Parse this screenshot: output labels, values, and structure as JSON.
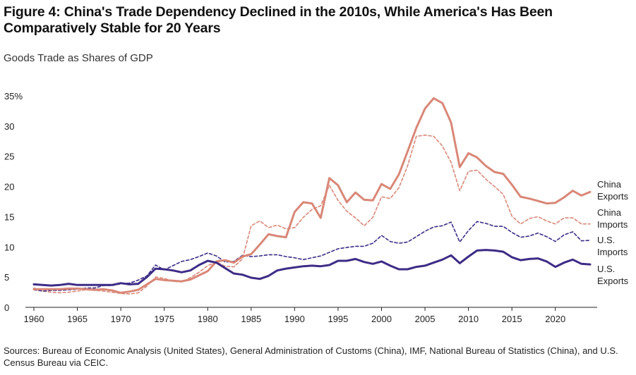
{
  "figure": {
    "title_prefix": "Figure 4:",
    "title_rest": " China's Trade Dependency Declined in the 2010s, While America's Has Been Comparatively Stable for 20 Years",
    "subtitle": "Goods Trade as Shares of GDP",
    "sources": "Sources: Bureau of Economic Analysis (United States), General Administration of Customs (China), IMF, National Bureau of Statistics (China), and U.S. Census Bureau via CEIC."
  },
  "chart_data": {
    "type": "line",
    "title": "China's Trade Dependency Declined in the 2010s, While America's Has Been Comparatively Stable for 20 Years",
    "subtitle": "Goods Trade as Shares of GDP",
    "xlim": [
      1960,
      2024
    ],
    "ylim": [
      0,
      35
    ],
    "x_ticks": [
      1960,
      1965,
      1970,
      1975,
      1980,
      1985,
      1990,
      1995,
      2000,
      2005,
      2010,
      2015,
      2020
    ],
    "x_tick_labels": [
      "1960",
      "1965",
      "1970",
      "1975",
      "1980",
      "1985",
      "1990",
      "1995",
      "2000",
      "2005",
      "2010",
      "2015",
      "2020"
    ],
    "y_ticks": [
      0,
      5,
      10,
      15,
      20,
      25,
      30,
      35
    ],
    "y_tick_labels": [
      "0",
      "5",
      "10",
      "15",
      "20",
      "25",
      "30",
      "35%"
    ],
    "grid": false,
    "legend": "direct labels at right end of lines",
    "x": [
      1960,
      1961,
      1962,
      1963,
      1964,
      1965,
      1966,
      1967,
      1968,
      1969,
      1970,
      1971,
      1972,
      1973,
      1974,
      1975,
      1976,
      1977,
      1978,
      1979,
      1980,
      1981,
      1982,
      1983,
      1984,
      1985,
      1986,
      1987,
      1988,
      1989,
      1990,
      1991,
      1992,
      1993,
      1994,
      1995,
      1996,
      1997,
      1998,
      1999,
      2000,
      2001,
      2002,
      2003,
      2004,
      2005,
      2006,
      2007,
      2008,
      2009,
      2010,
      2011,
      2012,
      2013,
      2014,
      2015,
      2016,
      2017,
      2018,
      2019,
      2020,
      2021,
      2022,
      2023,
      2024
    ],
    "series": [
      {
        "name": "China Exports",
        "label_lines": [
          "China",
          "Exports"
        ],
        "color": "#d98777",
        "style": "solid",
        "values": [
          3.0,
          3.0,
          3.0,
          3.0,
          3.1,
          3.1,
          3.0,
          2.9,
          3.0,
          2.8,
          2.4,
          2.6,
          2.9,
          3.8,
          4.7,
          4.5,
          4.4,
          4.3,
          4.6,
          5.3,
          6.0,
          7.6,
          7.8,
          7.4,
          8.4,
          8.8,
          10.4,
          12.1,
          11.8,
          11.6,
          15.8,
          17.4,
          17.2,
          14.8,
          21.4,
          20.2,
          17.4,
          19.0,
          17.8,
          17.7,
          20.4,
          19.6,
          22.0,
          25.8,
          29.7,
          32.9,
          34.6,
          33.8,
          30.6,
          23.2,
          25.5,
          24.8,
          23.4,
          22.4,
          22.1,
          20.3,
          18.3,
          18.0,
          17.6,
          17.2,
          17.3,
          18.2,
          19.3,
          18.5,
          19.1
        ]
      },
      {
        "name": "China Imports",
        "label_lines": [
          "China",
          "Imports"
        ],
        "color": "#d98777",
        "style": "dashed",
        "values": [
          3.2,
          2.7,
          2.5,
          2.4,
          2.5,
          2.7,
          2.9,
          2.8,
          2.7,
          2.5,
          2.3,
          2.2,
          2.4,
          3.5,
          5.0,
          4.8,
          4.3,
          4.2,
          4.9,
          5.8,
          6.9,
          7.5,
          6.8,
          6.7,
          8.0,
          13.5,
          14.3,
          13.2,
          13.6,
          13.0,
          13.2,
          14.9,
          16.2,
          16.8,
          20.2,
          17.7,
          15.9,
          14.8,
          13.5,
          14.9,
          18.3,
          18.0,
          19.8,
          23.4,
          28.3,
          28.5,
          28.3,
          26.7,
          24.0,
          19.3,
          22.5,
          22.7,
          21.2,
          20.0,
          18.7,
          15.1,
          13.8,
          14.7,
          15.0,
          14.3,
          13.8,
          14.8,
          14.8,
          13.8,
          13.8
        ]
      },
      {
        "name": "U.S. Imports",
        "label_lines": [
          "U.S.",
          "Imports"
        ],
        "color": "#3d2c86",
        "style": "dashed",
        "values": [
          2.9,
          2.7,
          2.8,
          2.8,
          2.9,
          3.0,
          3.2,
          3.2,
          3.6,
          3.6,
          3.9,
          4.0,
          4.5,
          5.2,
          7.0,
          6.2,
          6.9,
          7.6,
          7.9,
          8.4,
          9.0,
          8.5,
          7.5,
          7.6,
          8.6,
          8.4,
          8.5,
          8.7,
          8.7,
          8.4,
          8.2,
          7.9,
          8.2,
          8.5,
          9.1,
          9.7,
          9.9,
          10.1,
          10.1,
          10.6,
          11.9,
          10.9,
          10.6,
          10.8,
          11.7,
          12.6,
          13.3,
          13.5,
          14.1,
          10.8,
          12.7,
          14.2,
          13.9,
          13.4,
          13.4,
          12.4,
          11.6,
          11.8,
          12.3,
          11.7,
          10.9,
          12.0,
          12.5,
          11.0,
          11.1
        ]
      },
      {
        "name": "U.S. Exports",
        "label_lines": [
          "U.S.",
          "Exports"
        ],
        "color": "#3d2c86",
        "style": "solid",
        "values": [
          3.8,
          3.7,
          3.6,
          3.7,
          3.9,
          3.7,
          3.7,
          3.7,
          3.7,
          3.7,
          4.0,
          3.8,
          3.9,
          5.0,
          6.4,
          6.3,
          6.1,
          5.8,
          6.1,
          7.0,
          7.7,
          7.4,
          6.5,
          5.6,
          5.4,
          4.9,
          4.7,
          5.2,
          6.1,
          6.4,
          6.6,
          6.8,
          6.9,
          6.8,
          7.0,
          7.7,
          7.7,
          8.0,
          7.5,
          7.2,
          7.6,
          6.9,
          6.3,
          6.3,
          6.7,
          6.9,
          7.4,
          7.9,
          8.6,
          7.3,
          8.4,
          9.4,
          9.5,
          9.4,
          9.2,
          8.3,
          7.8,
          8.0,
          8.1,
          7.6,
          6.7,
          7.4,
          7.9,
          7.2,
          7.1
        ]
      }
    ]
  }
}
